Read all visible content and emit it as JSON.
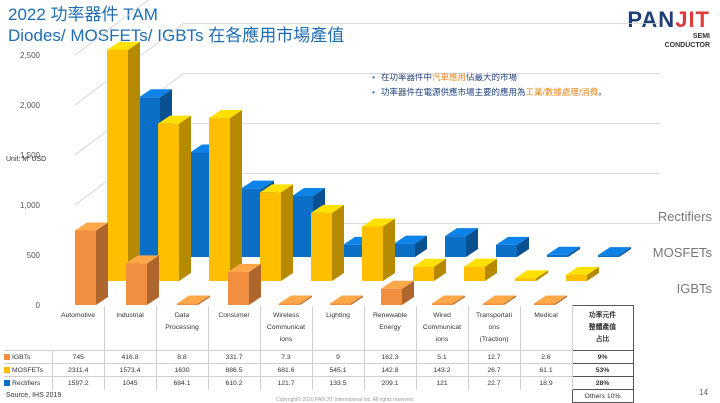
{
  "page": {
    "title_line1": "2022 功率器件 TAM",
    "title_line2": "Diodes/ MOSFETs/ IGBTs 在各應用市場產值",
    "logo_brand_a": "PAN",
    "logo_brand_b": "JIT",
    "logo_sub1": "SEMI",
    "logo_sub2": "CONDUCTOR",
    "bullet1_a": "在功率器件中",
    "bullet1_hl": "汽車應用",
    "bullet1_b": "佔最大的市場",
    "bullet2_a": "功率器件在電源供應市場主要的應用為",
    "bullet2_hl": "工業/數據處理/消費",
    "bullet2_b": "。",
    "unit": "Unit: M' USD",
    "source": "Source, IHS 2019",
    "copyright": "Copyright© 2020 PAN JIT International Inc. All rights reserved.",
    "page_number": "14"
  },
  "colors": {
    "igbt": "#f28e3f",
    "mosfet": "#fdbf00",
    "rectifier": "#0b6fc6",
    "grid": "#d0d0d0",
    "axis_text": "#555555",
    "series_label": "#777777"
  },
  "table": {
    "header_lines": [
      [
        "Automotive"
      ],
      [
        "Industrial"
      ],
      [
        "Data",
        "Processing"
      ],
      [
        "Consumer"
      ],
      [
        "Wireless",
        "Communicat",
        "ions"
      ],
      [
        "Lighting"
      ],
      [
        "Renewable",
        "Energy"
      ],
      [
        "Wired",
        "Communicat",
        "ions"
      ],
      [
        "Transportati",
        "ons",
        "(Traction)"
      ],
      [
        "Medical"
      ]
    ],
    "share_header": [
      "功率元件",
      "整體產值",
      "占比"
    ],
    "rows": [
      {
        "label": "IGBTs",
        "color": "#f28e3f",
        "values": [
          "745",
          "416.8",
          "8.8",
          "331.7",
          "7.3",
          "9",
          "162.3",
          "5.1",
          "12.7",
          "2.6"
        ],
        "share": "9%"
      },
      {
        "label": "MOSFETs",
        "color": "#fdbf00",
        "values": [
          "2311.4",
          "1573.4",
          "1630",
          "886.5",
          "681.6",
          "545.1",
          "142.8",
          "143.2",
          "26.7",
          "61.1"
        ],
        "share": "53%"
      },
      {
        "label": "Rectifiers",
        "color": "#0b6fc6",
        "values": [
          "1597.2",
          "1045",
          "684.1",
          "610.2",
          "121.7",
          "133.5",
          "209.1",
          "121",
          "22.7",
          "18.9"
        ],
        "share": "28%"
      }
    ],
    "others": "Others 10%"
  },
  "chart_data": {
    "type": "bar",
    "title": "2022 功率器件 TAM",
    "ylabel": "Unit: M' USD",
    "ylim": [
      0,
      2500
    ],
    "yticks": [
      "0",
      "500",
      "1,000",
      "1,500",
      "2,000",
      "2,500"
    ],
    "categories": [
      "Automotive",
      "Industrial",
      "Data Processing",
      "Consumer",
      "Wireless Communications",
      "Lighting",
      "Renewable Energy",
      "Wired Communications",
      "Transportations (Traction)",
      "Medical"
    ],
    "series": [
      {
        "name": "IGBTs",
        "values": [
          745,
          416.8,
          8.8,
          331.7,
          7.3,
          9,
          162.3,
          5.1,
          12.7,
          2.6
        ]
      },
      {
        "name": "MOSFETs",
        "values": [
          2311.4,
          1573.4,
          1630,
          886.5,
          681.6,
          545.1,
          142.8,
          143.2,
          26.7,
          61.1
        ]
      },
      {
        "name": "Rectifiers",
        "values": [
          1597.2,
          1045,
          684.1,
          610.2,
          121.7,
          133.5,
          209.1,
          121,
          22.7,
          18.9
        ]
      }
    ]
  }
}
